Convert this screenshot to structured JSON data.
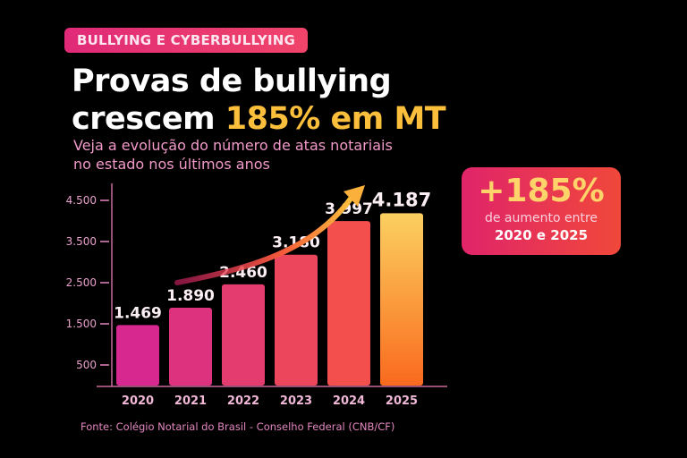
{
  "badge": "BULLYING E CYBERBULLYING",
  "title": {
    "line1": "Provas de bullying",
    "line2_prefix": "crescem",
    "line2_highlight": "185% em MT"
  },
  "subtitle": {
    "line1": "Veja a evolução do número de atas notariais",
    "line2": "no estado nos últimos anos"
  },
  "callout": {
    "value": "+185%",
    "line1": "de aumento entre",
    "line2": "2020 e 2025"
  },
  "source": "Fonte: Colégio Notarial do Brasil - Conselho Federal (CNB/CF)",
  "colors": {
    "bar_start": "#d6288f",
    "bar_end": "#fbbf3c",
    "accent": "#fbbf3c",
    "axis": "#e487c0"
  },
  "chart_data": {
    "type": "bar",
    "title": "",
    "xlabel": "",
    "ylabel": "",
    "categories": [
      "2020",
      "2021",
      "2022",
      "2023",
      "2024",
      "2025"
    ],
    "values": [
      1469,
      1890,
      2460,
      3180,
      3997,
      4187
    ],
    "value_labels": [
      "1.469",
      "1.890",
      "2.460",
      "3.180",
      "3.997",
      "4.187"
    ],
    "yticks": [
      500,
      1500,
      2500,
      3500,
      4500
    ],
    "ytick_labels": [
      "500",
      "1.500",
      "2.500",
      "3.500",
      "4.500"
    ],
    "ylim": [
      0,
      4900
    ],
    "grid": false,
    "annotation": "upward trend arrow"
  }
}
